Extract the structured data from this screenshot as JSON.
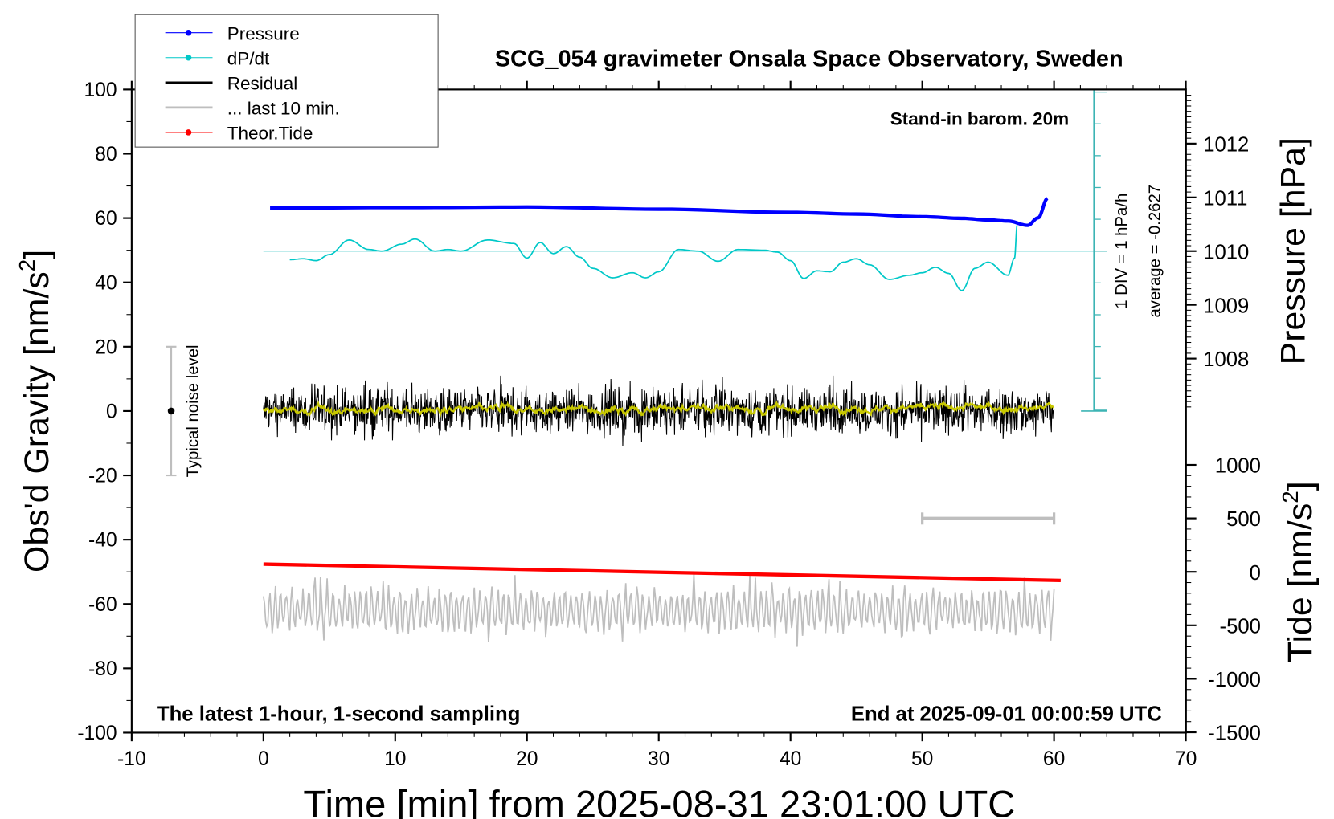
{
  "chart_data": {
    "type": "line",
    "title": "SCG_054 gravimeter Onsala Space Observatory, Sweden",
    "annotations": {
      "barometer": "Stand-in barom. 20m",
      "sampling": "The latest 1-hour, 1-second sampling",
      "end": "End at 2025-09-01 00:00:59 UTC",
      "div": "1 DIV = 1 hPa/h",
      "average": "average = -0.2627",
      "noise": "Typical noise level"
    },
    "xlabel": "Time [min] from 2025-08-31 23:01:00 UTC",
    "ylabel": "Obs'd Gravity [nm/s",
    "ylabel_sup": "2",
    "ylabel_end": "]",
    "y2label": "Pressure [hPa]",
    "y3label": "Tide [nm/s",
    "y3label_sup": "2",
    "y3label_end": "]",
    "xlim": [
      -10,
      70
    ],
    "ylim": [
      -100,
      100
    ],
    "pressure_ticks": [
      1008,
      1009,
      1010,
      1011,
      1012
    ],
    "tide_ticks": [
      1000,
      500,
      0,
      -500,
      -1000,
      -1500
    ],
    "xticks": [
      -10,
      0,
      10,
      20,
      30,
      40,
      50,
      60,
      70
    ],
    "yticks": [
      100,
      80,
      60,
      40,
      20,
      0,
      -20,
      -40,
      -60,
      -80,
      -100
    ],
    "grid": false,
    "legend": {
      "placement": "top-left",
      "entries": [
        {
          "name": "Pressure",
          "color": "#0000ff"
        },
        {
          "name": "dP/dt",
          "color": "#00c8c8"
        },
        {
          "name": "Residual",
          "color": "#000000"
        },
        {
          "name": "... last 10 min.",
          "color": "#bebebe"
        },
        {
          "name": "Theor.Tide",
          "color": "#ff0000"
        }
      ]
    },
    "series": [
      {
        "name": "Pressure",
        "unit": "hPa",
        "color": "#0000ff",
        "x": [
          0.5,
          10,
          20,
          30,
          40,
          45,
          50,
          53,
          55,
          56.5,
          58,
          58.8,
          59.5
        ],
        "y": [
          1010.8,
          1010.81,
          1010.82,
          1010.78,
          1010.72,
          1010.69,
          1010.64,
          1010.61,
          1010.58,
          1010.56,
          1010.48,
          1010.62,
          1010.98
        ]
      },
      {
        "name": "dP/dt",
        "unit": "hPa/h",
        "color": "#00c8c8",
        "zero_pressure_line": 1010,
        "x": [
          2,
          3,
          4,
          5,
          6.5,
          8,
          9,
          10.5,
          11.5,
          13,
          14,
          15,
          17,
          19,
          20,
          21,
          22,
          23,
          24,
          25,
          26.5,
          28,
          29,
          30,
          31.5,
          33,
          34.5,
          36,
          38,
          39,
          40,
          41,
          42,
          43,
          44,
          45,
          46,
          47.5,
          49,
          50,
          51,
          52,
          53,
          54,
          55,
          56.5,
          57,
          57.2
        ],
        "y": [
          -0.27,
          -0.24,
          -0.3,
          -0.11,
          0.35,
          0.05,
          0.0,
          0.22,
          0.38,
          0.0,
          0.05,
          0.0,
          0.35,
          0.24,
          -0.22,
          0.27,
          -0.08,
          0.14,
          -0.19,
          -0.54,
          -0.84,
          -0.68,
          -0.84,
          -0.65,
          0.05,
          0.0,
          -0.32,
          0.05,
          0.03,
          -0.03,
          -0.3,
          -0.86,
          -0.62,
          -0.65,
          -0.35,
          -0.24,
          -0.43,
          -0.89,
          -0.76,
          -0.68,
          -0.51,
          -0.7,
          -1.24,
          -0.54,
          -0.35,
          -0.76,
          -0.22,
          0.81
        ]
      },
      {
        "name": "Residual",
        "unit": "nm/s2",
        "color": "#000000",
        "x_range": [
          0,
          60
        ],
        "mean": 0,
        "range": [
          -11,
          11
        ],
        "smoothed_color": "#c8c800"
      },
      {
        "name": "... last 10 min.",
        "unit": "nm/s2",
        "color": "#bebebe",
        "x_range": [
          0,
          60
        ],
        "mean": -62,
        "range": [
          -72,
          -52
        ]
      },
      {
        "name": "Theor.Tide",
        "unit": "nm/s2",
        "color": "#ff0000",
        "x": [
          0,
          60.5
        ],
        "y": [
          72,
          -80
        ]
      }
    ],
    "noise_bar": {
      "x": -7,
      "y_range": [
        -20,
        20
      ]
    },
    "last10_bar": {
      "x_range": [
        50,
        60
      ]
    }
  }
}
